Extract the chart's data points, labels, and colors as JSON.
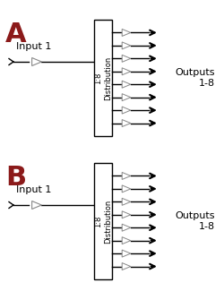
{
  "background_color": "#ffffff",
  "label_A": "A",
  "label_B": "B",
  "label_color": "#8b1a1a",
  "label_fontsize": 22,
  "input_label": "Input 1",
  "input_fontsize": 8,
  "dist_label": "1:8\nDistribution",
  "dist_fontsize": 6,
  "output_label": "Outputs\n1-8",
  "output_fontsize": 8,
  "n_outputs": 8,
  "line_color": "#000000",
  "box_color": "#ffffff",
  "box_edge_color": "#000000",
  "amp_edge_color": "#888888"
}
